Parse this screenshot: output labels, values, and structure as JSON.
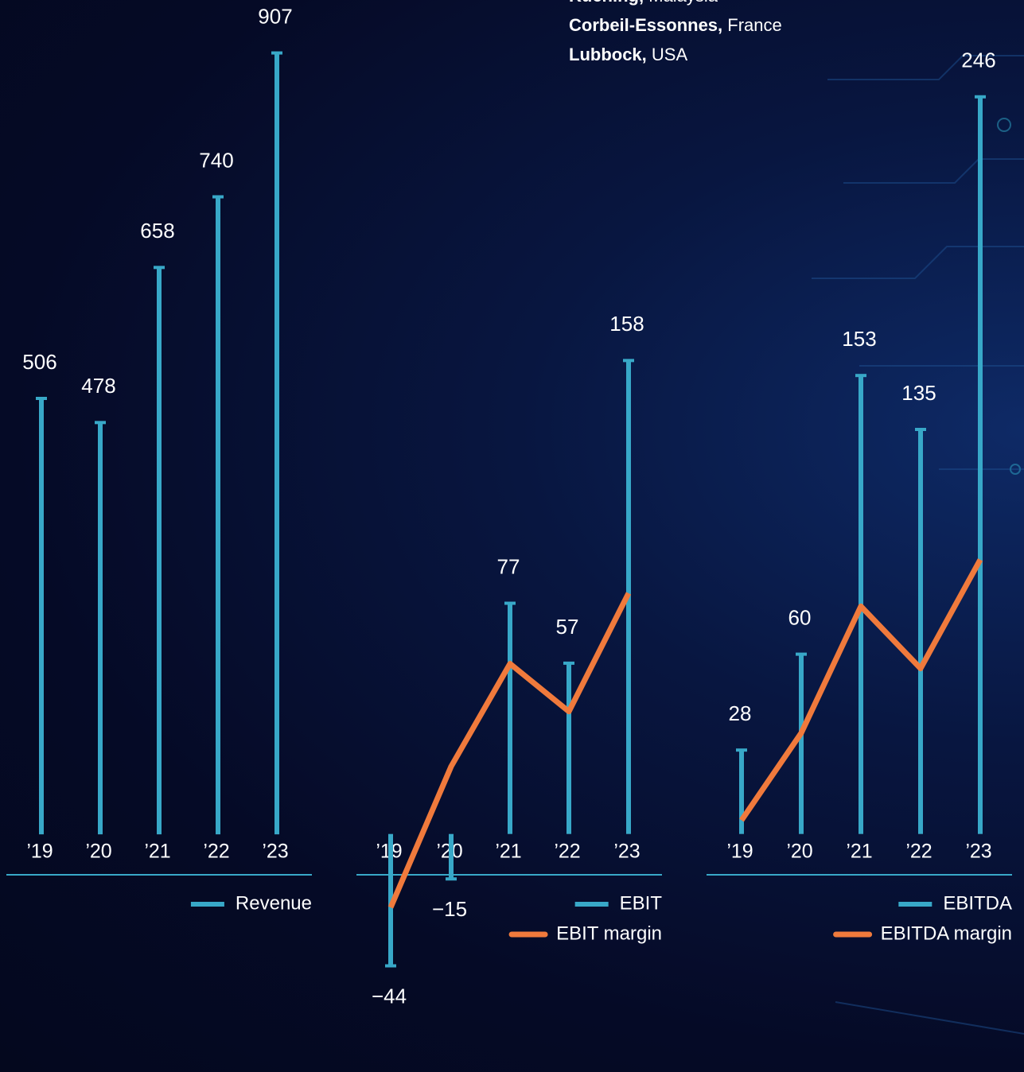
{
  "locations": [
    {
      "city": "Kuching,",
      "country": "Malaysia"
    },
    {
      "city": "Corbeil-Essonnes,",
      "country": "France"
    },
    {
      "city": "Lubbock,",
      "country": "USA"
    }
  ],
  "chart_data": [
    {
      "type": "bar",
      "categories": [
        "’19",
        "’20",
        "’21",
        "’22",
        "’23"
      ],
      "series": [
        {
          "name": "Revenue",
          "color": "#38a8c8",
          "values": [
            506,
            478,
            658,
            740,
            907
          ]
        }
      ],
      "ylim": [
        -250,
        950
      ],
      "legend": "bottom-right"
    },
    {
      "type": "combo",
      "categories": [
        "’19",
        "’20",
        "’21",
        "’22",
        "’23"
      ],
      "series": [
        {
          "name": "EBIT",
          "color": "#38a8c8",
          "values": [
            -44,
            -15,
            77,
            57,
            158
          ],
          "value_labels": [
            "−44",
            "−15",
            "77",
            "57",
            "158"
          ]
        },
        {
          "name": "EBIT margin",
          "color": "#f07a3c",
          "axis": "y2",
          "values": [
            -6.1,
            5.7,
            14.3,
            10.3,
            20.2
          ]
        }
      ],
      "ylim": [
        -72,
        273
      ],
      "y2lim": [
        -18,
        68.5
      ],
      "legend": "bottom-right"
    },
    {
      "type": "combo",
      "categories": [
        "’19",
        "’20",
        "’21",
        "’22",
        "’23"
      ],
      "series": [
        {
          "name": "EBITDA",
          "color": "#38a8c8",
          "values": [
            28,
            60,
            153,
            135,
            246
          ]
        },
        {
          "name": "EBITDA margin",
          "color": "#f07a3c",
          "axis": "y2",
          "values": [
            1.2,
            8.5,
            19.1,
            13.9,
            23.0
          ]
        }
      ],
      "ylim": [
        -72,
        273
      ],
      "y2lim": [
        -18,
        68.5
      ],
      "legend": "bottom-right"
    }
  ]
}
